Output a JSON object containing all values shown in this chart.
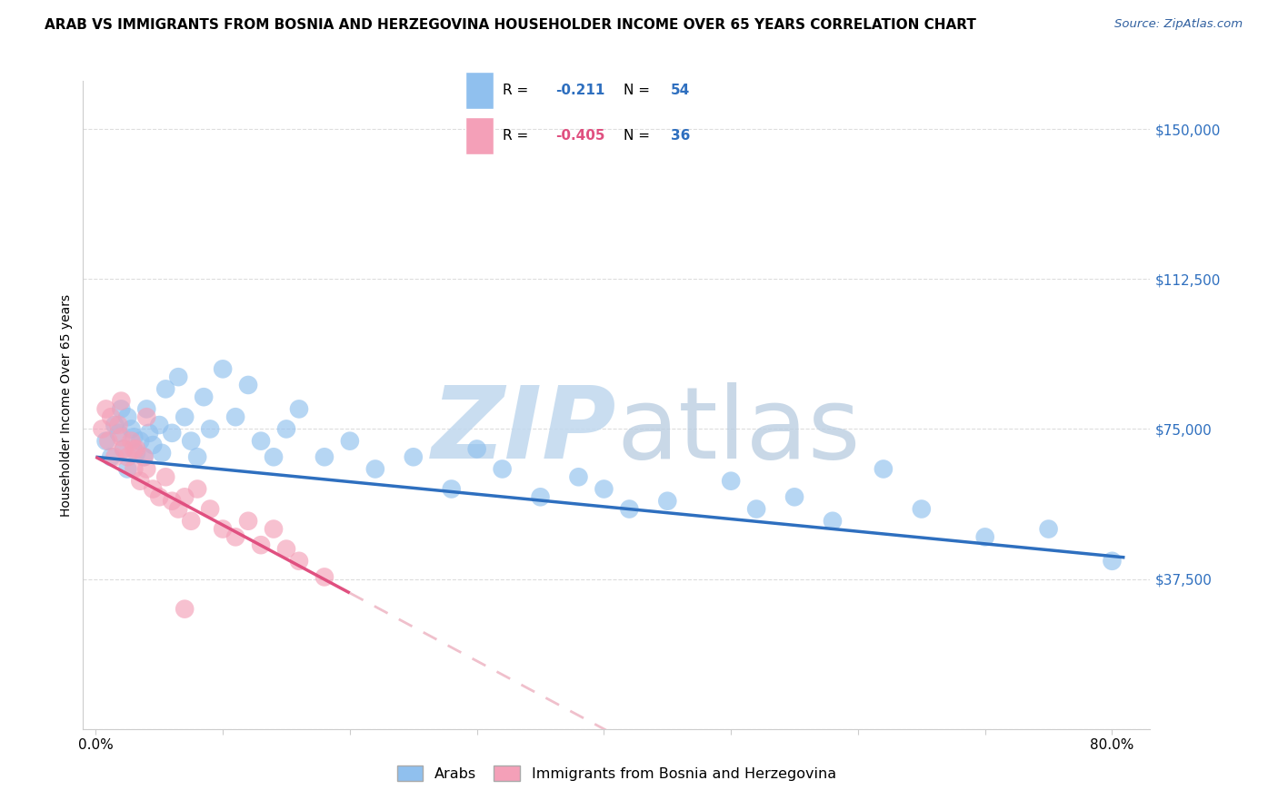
{
  "title": "ARAB VS IMMIGRANTS FROM BOSNIA AND HERZEGOVINA HOUSEHOLDER INCOME OVER 65 YEARS CORRELATION CHART",
  "source": "Source: ZipAtlas.com",
  "ylabel": "Householder Income Over 65 years",
  "legend_arab_R": "-0.211",
  "legend_arab_N": "54",
  "legend_bosnia_R": "-0.405",
  "legend_bosnia_N": "36",
  "legend_label_arab": "Arabs",
  "legend_label_bosnia": "Immigrants from Bosnia and Herzegovina",
  "ytick_vals": [
    0,
    37500,
    75000,
    112500,
    150000
  ],
  "ytick_labels": [
    "",
    "$37,500",
    "$75,000",
    "$112,500",
    "$150,000"
  ],
  "xtick_vals": [
    0.0,
    0.1,
    0.2,
    0.3,
    0.4,
    0.5,
    0.6,
    0.7,
    0.8
  ],
  "xtick_labels": [
    "0.0%",
    "",
    "",
    "",
    "",
    "",
    "",
    "",
    "80.0%"
  ],
  "xlim": [
    -0.01,
    0.83
  ],
  "ylim": [
    0,
    162000
  ],
  "color_arab": "#90C0EE",
  "color_bosnia": "#F4A0B8",
  "color_trendline_arab": "#2E6FBF",
  "color_trendline_bosnia": "#E05080",
  "color_trendline_bosnia_ext": "#F0C0CC",
  "watermark_zip": "ZIP",
  "watermark_atlas": "atlas",
  "watermark_color": "#C8DCF0",
  "grid_color": "#DDDDDD",
  "R_color_arab": "#2E6FBF",
  "R_color_bosnia": "#E05080",
  "N_color_arab": "#2E6FBF",
  "N_color_bosnia": "#2E6FBF",
  "arab_x": [
    0.008,
    0.012,
    0.015,
    0.018,
    0.02,
    0.022,
    0.025,
    0.025,
    0.028,
    0.03,
    0.032,
    0.035,
    0.038,
    0.04,
    0.042,
    0.045,
    0.05,
    0.052,
    0.055,
    0.06,
    0.065,
    0.07,
    0.075,
    0.08,
    0.085,
    0.09,
    0.1,
    0.11,
    0.12,
    0.13,
    0.14,
    0.15,
    0.16,
    0.18,
    0.2,
    0.22,
    0.25,
    0.28,
    0.3,
    0.32,
    0.35,
    0.38,
    0.4,
    0.42,
    0.45,
    0.5,
    0.52,
    0.55,
    0.58,
    0.62,
    0.65,
    0.7,
    0.75,
    0.8
  ],
  "arab_y": [
    72000,
    68000,
    76000,
    74000,
    80000,
    70000,
    78000,
    65000,
    75000,
    73000,
    69000,
    72000,
    68000,
    80000,
    74000,
    71000,
    76000,
    69000,
    85000,
    74000,
    88000,
    78000,
    72000,
    68000,
    83000,
    75000,
    90000,
    78000,
    86000,
    72000,
    68000,
    75000,
    80000,
    68000,
    72000,
    65000,
    68000,
    60000,
    70000,
    65000,
    58000,
    63000,
    60000,
    55000,
    57000,
    62000,
    55000,
    58000,
    52000,
    65000,
    55000,
    48000,
    50000,
    42000
  ],
  "bosnia_x": [
    0.005,
    0.008,
    0.01,
    0.012,
    0.015,
    0.018,
    0.02,
    0.022,
    0.025,
    0.028,
    0.03,
    0.032,
    0.035,
    0.038,
    0.04,
    0.045,
    0.05,
    0.055,
    0.06,
    0.065,
    0.07,
    0.075,
    0.08,
    0.09,
    0.1,
    0.11,
    0.12,
    0.13,
    0.14,
    0.15,
    0.16,
    0.18,
    0.02,
    0.03,
    0.04,
    0.07
  ],
  "bosnia_y": [
    75000,
    80000,
    72000,
    78000,
    68000,
    76000,
    73000,
    70000,
    68000,
    72000,
    65000,
    70000,
    62000,
    68000,
    65000,
    60000,
    58000,
    63000,
    57000,
    55000,
    58000,
    52000,
    60000,
    55000,
    50000,
    48000,
    52000,
    46000,
    50000,
    45000,
    42000,
    38000,
    82000,
    70000,
    78000,
    30000
  ]
}
